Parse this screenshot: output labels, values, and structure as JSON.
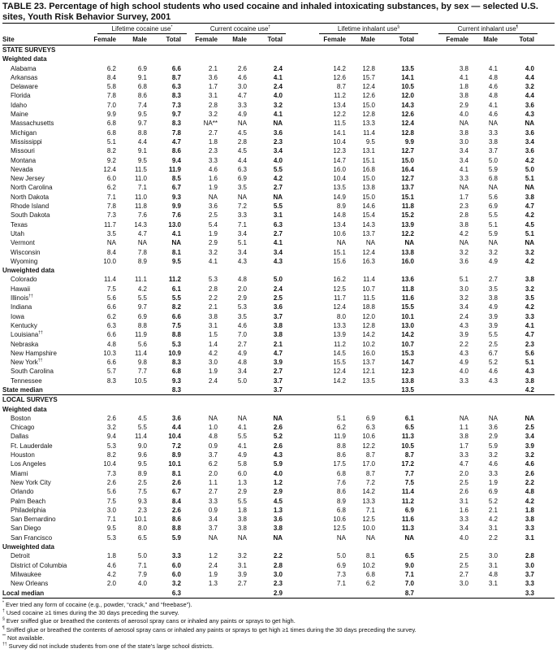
{
  "title": "TABLE 23. Percentage of high school students who used cocaine and inhaled intoxicating substances, by sex — selected U.S. sites, Youth Risk Behavior Survey, 2001",
  "column_groups": [
    {
      "label": "Lifetime cocaine use",
      "mark": "*"
    },
    {
      "label": "Current cocaine use",
      "mark": "†"
    },
    {
      "label": "Lifetime inhalant use",
      "mark": "§"
    },
    {
      "label": "Current inhalant use",
      "mark": "¶"
    }
  ],
  "columns": [
    "Site",
    "Female",
    "Male",
    "Total",
    "Female",
    "Male",
    "Total",
    "Female",
    "Male",
    "Total",
    "Female",
    "Male",
    "Total"
  ],
  "sections": [
    {
      "type": "heading",
      "label": "STATE SURVEYS"
    },
    {
      "type": "subheading",
      "label": "Weighted data"
    },
    {
      "type": "rows",
      "rows": [
        [
          "Alabama",
          "",
          "6.2",
          "6.9",
          "6.6",
          "2.1",
          "2.6",
          "2.4",
          "14.2",
          "12.8",
          "13.5",
          "3.8",
          "4.1",
          "4.0"
        ],
        [
          "Arkansas",
          "",
          "8.4",
          "9.1",
          "8.7",
          "3.6",
          "4.6",
          "4.1",
          "12.6",
          "15.7",
          "14.1",
          "4.1",
          "4.8",
          "4.4"
        ],
        [
          "Delaware",
          "",
          "5.8",
          "6.8",
          "6.3",
          "1.7",
          "3.0",
          "2.4",
          "8.7",
          "12.4",
          "10.5",
          "1.8",
          "4.6",
          "3.2"
        ],
        [
          "Florida",
          "",
          "7.8",
          "8.6",
          "8.3",
          "3.1",
          "4.7",
          "4.0",
          "11.2",
          "12.6",
          "12.0",
          "3.8",
          "4.8",
          "4.4"
        ],
        [
          "Idaho",
          "",
          "7.0",
          "7.4",
          "7.3",
          "2.8",
          "3.3",
          "3.2",
          "13.4",
          "15.0",
          "14.3",
          "2.9",
          "4.1",
          "3.6"
        ],
        [
          "Maine",
          "",
          "9.9",
          "9.5",
          "9.7",
          "3.2",
          "4.9",
          "4.1",
          "12.2",
          "12.8",
          "12.6",
          "4.0",
          "4.6",
          "4.3"
        ],
        [
          "Massachusetts",
          "",
          "6.8",
          "9.7",
          "8.3",
          "NA**",
          "NA",
          "NA",
          "11.5",
          "13.3",
          "12.4",
          "NA",
          "NA",
          "NA"
        ],
        [
          "Michigan",
          "",
          "6.8",
          "8.8",
          "7.8",
          "2.7",
          "4.5",
          "3.6",
          "14.1",
          "11.4",
          "12.8",
          "3.8",
          "3.3",
          "3.6"
        ],
        [
          "Mississippi",
          "",
          "5.1",
          "4.4",
          "4.7",
          "1.8",
          "2.8",
          "2.3",
          "10.4",
          "9.5",
          "9.9",
          "3.0",
          "3.8",
          "3.4"
        ],
        [
          "Missouri",
          "",
          "8.2",
          "9.1",
          "8.6",
          "2.3",
          "4.5",
          "3.4",
          "12.3",
          "13.1",
          "12.7",
          "3.4",
          "3.7",
          "3.6"
        ],
        [
          "Montana",
          "",
          "9.2",
          "9.5",
          "9.4",
          "3.3",
          "4.4",
          "4.0",
          "14.7",
          "15.1",
          "15.0",
          "3.4",
          "5.0",
          "4.2"
        ],
        [
          "Nevada",
          "",
          "12.4",
          "11.5",
          "11.9",
          "4.6",
          "6.3",
          "5.5",
          "16.0",
          "16.8",
          "16.4",
          "4.1",
          "5.9",
          "5.0"
        ],
        [
          "New Jersey",
          "",
          "6.0",
          "11.0",
          "8.5",
          "1.6",
          "6.9",
          "4.2",
          "10.4",
          "15.0",
          "12.7",
          "3.3",
          "6.8",
          "5.1"
        ],
        [
          "North Carolina",
          "",
          "6.2",
          "7.1",
          "6.7",
          "1.9",
          "3.5",
          "2.7",
          "13.5",
          "13.8",
          "13.7",
          "NA",
          "NA",
          "NA"
        ],
        [
          "North Dakota",
          "",
          "7.1",
          "11.0",
          "9.3",
          "NA",
          "NA",
          "NA",
          "14.9",
          "15.0",
          "15.1",
          "1.7",
          "5.6",
          "3.8"
        ],
        [
          "Rhode Island",
          "",
          "7.8",
          "11.8",
          "9.9",
          "3.6",
          "7.2",
          "5.5",
          "8.9",
          "14.6",
          "11.8",
          "2.3",
          "6.9",
          "4.7"
        ],
        [
          "South Dakota",
          "",
          "7.3",
          "7.6",
          "7.6",
          "2.5",
          "3.3",
          "3.1",
          "14.8",
          "15.4",
          "15.2",
          "2.8",
          "5.5",
          "4.2"
        ],
        [
          "Texas",
          "",
          "11.7",
          "14.3",
          "13.0",
          "5.4",
          "7.1",
          "6.3",
          "13.4",
          "14.3",
          "13.9",
          "3.8",
          "5.1",
          "4.5"
        ],
        [
          "Utah",
          "",
          "3.5",
          "4.7",
          "4.1",
          "1.9",
          "3.4",
          "2.7",
          "10.6",
          "13.7",
          "12.2",
          "4.2",
          "5.9",
          "5.1"
        ],
        [
          "Vermont",
          "",
          "NA",
          "NA",
          "NA",
          "2.9",
          "5.1",
          "4.1",
          "NA",
          "NA",
          "NA",
          "NA",
          "NA",
          "NA"
        ],
        [
          "Wisconsin",
          "",
          "8.4",
          "7.8",
          "8.1",
          "3.2",
          "3.4",
          "3.4",
          "15.1",
          "12.4",
          "13.8",
          "3.2",
          "3.2",
          "3.2"
        ],
        [
          "Wyoming",
          "",
          "10.0",
          "8.9",
          "9.5",
          "4.1",
          "4.3",
          "4.3",
          "15.6",
          "16.3",
          "16.0",
          "3.6",
          "4.9",
          "4.2"
        ]
      ]
    },
    {
      "type": "subheading",
      "label": "Unweighted data"
    },
    {
      "type": "rows",
      "rows": [
        [
          "Colorado",
          "",
          "11.4",
          "11.1",
          "11.2",
          "5.3",
          "4.8",
          "5.0",
          "16.2",
          "11.4",
          "13.6",
          "5.1",
          "2.7",
          "3.8"
        ],
        [
          "Hawaii",
          "",
          "7.5",
          "4.2",
          "6.1",
          "2.8",
          "2.0",
          "2.4",
          "12.5",
          "10.7",
          "11.8",
          "3.0",
          "3.5",
          "3.2"
        ],
        [
          "Illinois",
          "††",
          "5.6",
          "5.5",
          "5.5",
          "2.2",
          "2.9",
          "2.5",
          "11.7",
          "11.5",
          "11.6",
          "3.2",
          "3.8",
          "3.5"
        ],
        [
          "Indiana",
          "",
          "6.6",
          "9.7",
          "8.2",
          "2.1",
          "5.3",
          "3.6",
          "12.4",
          "18.8",
          "15.5",
          "3.4",
          "4.9",
          "4.2"
        ],
        [
          "Iowa",
          "",
          "6.2",
          "6.9",
          "6.6",
          "3.8",
          "3.5",
          "3.7",
          "8.0",
          "12.0",
          "10.1",
          "2.4",
          "3.9",
          "3.3"
        ],
        [
          "Kentucky",
          "",
          "6.3",
          "8.8",
          "7.5",
          "3.1",
          "4.6",
          "3.8",
          "13.3",
          "12.8",
          "13.0",
          "4.3",
          "3.9",
          "4.1"
        ],
        [
          "Louisiana",
          "††",
          "6.6",
          "11.9",
          "8.8",
          "1.5",
          "7.0",
          "3.8",
          "13.9",
          "14.2",
          "14.2",
          "3.9",
          "5.5",
          "4.7"
        ],
        [
          "Nebraska",
          "",
          "4.8",
          "5.6",
          "5.3",
          "1.4",
          "2.7",
          "2.1",
          "11.2",
          "10.2",
          "10.7",
          "2.2",
          "2.5",
          "2.3"
        ],
        [
          "New Hampshire",
          "",
          "10.3",
          "11.4",
          "10.9",
          "4.2",
          "4.9",
          "4.7",
          "14.5",
          "16.0",
          "15.3",
          "4.3",
          "6.7",
          "5.6"
        ],
        [
          "New York",
          "††",
          "6.6",
          "9.8",
          "8.3",
          "3.0",
          "4.8",
          "3.9",
          "15.5",
          "13.7",
          "14.7",
          "4.9",
          "5.2",
          "5.1"
        ],
        [
          "South Carolina",
          "",
          "5.7",
          "7.7",
          "6.8",
          "1.9",
          "3.4",
          "2.7",
          "12.4",
          "12.1",
          "12.3",
          "4.0",
          "4.6",
          "4.3"
        ],
        [
          "Tennessee",
          "",
          "8.3",
          "10.5",
          "9.3",
          "2.4",
          "5.0",
          "3.7",
          "14.2",
          "13.5",
          "13.8",
          "3.3",
          "4.3",
          "3.8"
        ]
      ]
    },
    {
      "type": "median",
      "label": "State median",
      "values": [
        "8.3",
        "3.7",
        "13.5",
        "4.2"
      ]
    },
    {
      "type": "heading",
      "label": "LOCAL SURVEYS"
    },
    {
      "type": "subheading",
      "label": "Weighted data"
    },
    {
      "type": "rows",
      "rows": [
        [
          "Boston",
          "",
          "2.6",
          "4.5",
          "3.6",
          "NA",
          "NA",
          "NA",
          "5.1",
          "6.9",
          "6.1",
          "NA",
          "NA",
          "NA"
        ],
        [
          "Chicago",
          "",
          "3.2",
          "5.5",
          "4.4",
          "1.0",
          "4.1",
          "2.6",
          "6.2",
          "6.3",
          "6.5",
          "1.1",
          "3.6",
          "2.5"
        ],
        [
          "Dallas",
          "",
          "9.4",
          "11.4",
          "10.4",
          "4.8",
          "5.5",
          "5.2",
          "11.9",
          "10.6",
          "11.3",
          "3.8",
          "2.9",
          "3.4"
        ],
        [
          "Ft. Lauderdale",
          "",
          "5.3",
          "9.0",
          "7.2",
          "0.9",
          "4.1",
          "2.6",
          "8.8",
          "12.2",
          "10.5",
          "1.7",
          "5.9",
          "3.9"
        ],
        [
          "Houston",
          "",
          "8.2",
          "9.6",
          "8.9",
          "3.7",
          "4.9",
          "4.3",
          "8.6",
          "8.7",
          "8.7",
          "3.3",
          "3.2",
          "3.2"
        ],
        [
          "Los Angeles",
          "",
          "10.4",
          "9.5",
          "10.1",
          "6.2",
          "5.8",
          "5.9",
          "17.5",
          "17.0",
          "17.2",
          "4.7",
          "4.6",
          "4.6"
        ],
        [
          "Miami",
          "",
          "7.3",
          "8.9",
          "8.1",
          "2.0",
          "6.0",
          "4.0",
          "6.8",
          "8.7",
          "7.7",
          "2.0",
          "3.3",
          "2.6"
        ],
        [
          "New York City",
          "",
          "2.6",
          "2.5",
          "2.6",
          "1.1",
          "1.3",
          "1.2",
          "7.6",
          "7.2",
          "7.5",
          "2.5",
          "1.9",
          "2.2"
        ],
        [
          "Orlando",
          "",
          "5.6",
          "7.5",
          "6.7",
          "2.7",
          "2.9",
          "2.9",
          "8.6",
          "14.2",
          "11.4",
          "2.6",
          "6.9",
          "4.8"
        ],
        [
          "Palm Beach",
          "",
          "7.5",
          "9.3",
          "8.4",
          "3.3",
          "5.5",
          "4.5",
          "8.9",
          "13.3",
          "11.2",
          "3.1",
          "5.2",
          "4.2"
        ],
        [
          "Philadelphia",
          "",
          "3.0",
          "2.3",
          "2.6",
          "0.9",
          "1.8",
          "1.3",
          "6.8",
          "7.1",
          "6.9",
          "1.6",
          "2.1",
          "1.8"
        ],
        [
          "San Bernardino",
          "",
          "7.1",
          "10.1",
          "8.6",
          "3.4",
          "3.8",
          "3.6",
          "10.6",
          "12.5",
          "11.6",
          "3.3",
          "4.2",
          "3.8"
        ],
        [
          "San Diego",
          "",
          "9.5",
          "8.0",
          "8.8",
          "3.7",
          "3.8",
          "3.8",
          "12.5",
          "10.0",
          "11.3",
          "3.4",
          "3.1",
          "3.3"
        ],
        [
          "San Francisco",
          "",
          "5.3",
          "6.5",
          "5.9",
          "NA",
          "NA",
          "NA",
          "NA",
          "NA",
          "NA",
          "4.0",
          "2.2",
          "3.1"
        ]
      ]
    },
    {
      "type": "subheading",
      "label": "Unweighted data"
    },
    {
      "type": "rows",
      "rows": [
        [
          "Detroit",
          "",
          "1.8",
          "5.0",
          "3.3",
          "1.2",
          "3.2",
          "2.2",
          "5.0",
          "8.1",
          "6.5",
          "2.5",
          "3.0",
          "2.8"
        ],
        [
          "District of Columbia",
          "",
          "4.6",
          "7.1",
          "6.0",
          "2.4",
          "3.1",
          "2.8",
          "6.9",
          "10.2",
          "9.0",
          "2.5",
          "3.1",
          "3.0"
        ],
        [
          "Milwaukee",
          "",
          "4.2",
          "7.9",
          "6.0",
          "1.9",
          "3.9",
          "3.0",
          "7.3",
          "6.8",
          "7.1",
          "2.7",
          "4.8",
          "3.7"
        ],
        [
          "New Orleans",
          "",
          "2.0",
          "4.0",
          "3.2",
          "1.3",
          "2.7",
          "2.3",
          "7.1",
          "6.2",
          "7.0",
          "3.0",
          "3.1",
          "3.3"
        ]
      ]
    },
    {
      "type": "median",
      "label": "Local median",
      "values": [
        "6.3",
        "2.9",
        "8.7",
        "3.3"
      ]
    }
  ],
  "footnotes": [
    {
      "mark": "*",
      "text": "Ever tried any form of cocaine (e.g., powder, “crack,” and “freebase”)."
    },
    {
      "mark": "†",
      "text": "Used cocaine ≥1 times during the 30 days preceding the survey."
    },
    {
      "mark": "§",
      "text": "Ever sniffed glue or breathed the contents of aerosol spray cans or inhaled any paints or sprays to get high."
    },
    {
      "mark": "¶",
      "text": "Sniffed glue or breathed the contents of aerosol spray cans or inhaled any paints or sprays to get high ≥1 times during the 30 days preceding the survey."
    },
    {
      "mark": "**",
      "text": "Not available."
    },
    {
      "mark": "††",
      "text": "Survey did not include students from one of the state’s large school districts."
    }
  ]
}
